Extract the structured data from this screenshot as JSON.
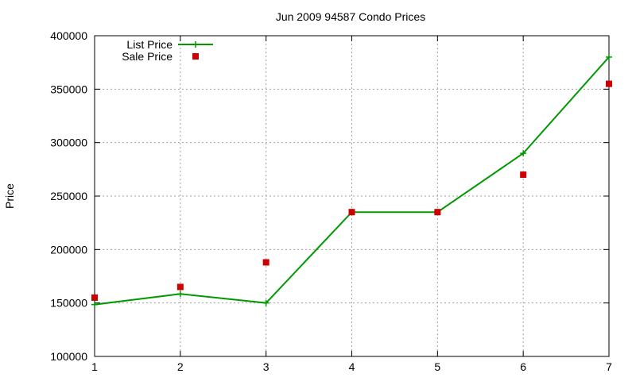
{
  "chart_data": {
    "type": "line",
    "title": "Jun 2009 94587 Condo Prices",
    "xlabel": "",
    "ylabel": "Price",
    "x": [
      1,
      2,
      3,
      4,
      5,
      6,
      7
    ],
    "xlim": [
      1,
      7
    ],
    "ylim": [
      100000,
      400000
    ],
    "xticks": [
      1,
      2,
      3,
      4,
      5,
      6,
      7
    ],
    "yticks": [
      100000,
      150000,
      200000,
      250000,
      300000,
      350000,
      400000
    ],
    "grid": true,
    "legend": "top-left",
    "series": [
      {
        "name": "List Price",
        "type": "line",
        "marker": "plus",
        "color": "#009900",
        "values": [
          148500,
          158500,
          150000,
          235000,
          235000,
          290000,
          380000
        ]
      },
      {
        "name": "Sale Price",
        "type": "scatter",
        "marker": "square",
        "color": "#cc0000",
        "values": [
          155000,
          165000,
          188000,
          235000,
          235000,
          270000,
          355000
        ]
      }
    ]
  }
}
